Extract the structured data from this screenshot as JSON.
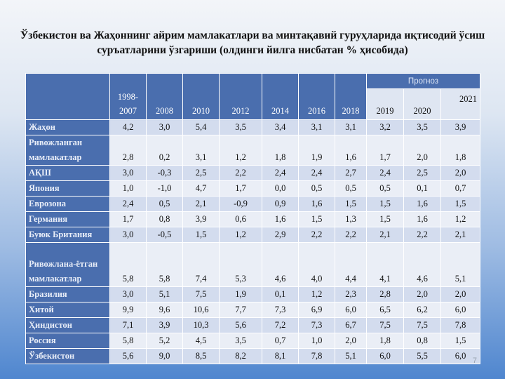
{
  "title": "Ўзбекистон ва Жаҳоннинг айрим мамлакатлари ва минтақавий гуруҳларида иқтисодий ўсиш суръатларини ўзгариши (олдинги йилга нисбатан % ҳисобида)",
  "table": {
    "years": [
      "1998-2007",
      "2008",
      "2010",
      "2012",
      "2014",
      "2016",
      "2018"
    ],
    "forecast_label": "Прогноз",
    "forecast_years": [
      "2019",
      "2020",
      "2021"
    ],
    "rows": [
      {
        "label": "Жаҳон",
        "values": [
          "4,2",
          "3,0",
          "5,4",
          "3,5",
          "3,4",
          "3,1",
          "3,1",
          "3,2",
          "3,5",
          "3,9"
        ]
      },
      {
        "label": "Ривожланган мамлакатлар",
        "values": [
          "2,8",
          "0,2",
          "3,1",
          "1,2",
          "1,8",
          "1,9",
          "1,6",
          "1,7",
          "2,0",
          "1,8"
        ]
      },
      {
        "label": "АҚШ",
        "values": [
          "3,0",
          "-0,3",
          "2,5",
          "2,2",
          "2,4",
          "2,4",
          "2,7",
          "2,4",
          "2,5",
          "2,0"
        ]
      },
      {
        "label": "Япония",
        "values": [
          "1,0",
          "-1,0",
          "4,7",
          "1,7",
          "0,0",
          "0,5",
          "0,5",
          "0,5",
          "0,1",
          "0,7"
        ]
      },
      {
        "label": "Еврозона",
        "values": [
          "2,4",
          "0,5",
          "2,1",
          "-0,9",
          "0,9",
          "1,6",
          "1,5",
          "1,5",
          "1,6",
          "1,5"
        ]
      },
      {
        "label": "Германия",
        "values": [
          "1,7",
          "0,8",
          "3,9",
          "0,6",
          "1,6",
          "1,5",
          "1,3",
          "1,5",
          "1,6",
          "1,2"
        ]
      },
      {
        "label": "Буюк Британия",
        "values": [
          "3,0",
          "-0,5",
          "1,5",
          "1,2",
          "2,9",
          "2,2",
          "2,2",
          "2,1",
          "2,2",
          "2,1"
        ]
      },
      {
        "label": "Ривожлана-ётган мамлакатлар",
        "values": [
          "5,8",
          "5,8",
          "7,4",
          "5,3",
          "4,6",
          "4,0",
          "4,4",
          "4,1",
          "4,6",
          "5,1"
        ]
      },
      {
        "label": "Бразилия",
        "values": [
          "3,0",
          "5,1",
          "7,5",
          "1,9",
          "0,1",
          "1,2",
          "2,3",
          "2,8",
          "2,0",
          "2,0"
        ]
      },
      {
        "label": "Хитой",
        "values": [
          "9,9",
          "9,6",
          "10,6",
          "7,7",
          "7,3",
          "6,9",
          "6,0",
          "6,5",
          "6,2",
          "6,0"
        ]
      },
      {
        "label": "Ҳиндистон",
        "values": [
          "7,1",
          "3,9",
          "10,3",
          "5,6",
          "7,2",
          "7,3",
          "6,7",
          "7,5",
          "7,5",
          "7,8"
        ]
      },
      {
        "label": "Россия",
        "values": [
          "5,8",
          "5,2",
          "4,5",
          "3,5",
          "0,7",
          "1,0",
          "2,0",
          "1,8",
          "0,8",
          "1,5"
        ]
      },
      {
        "label": "Ўзбекистон",
        "values": [
          "5,6",
          "9,0",
          "8,5",
          "8,2",
          "8,1",
          "7,8",
          "5,1",
          "6,0",
          "5,5",
          "6,0"
        ]
      }
    ]
  },
  "page_number": "7"
}
